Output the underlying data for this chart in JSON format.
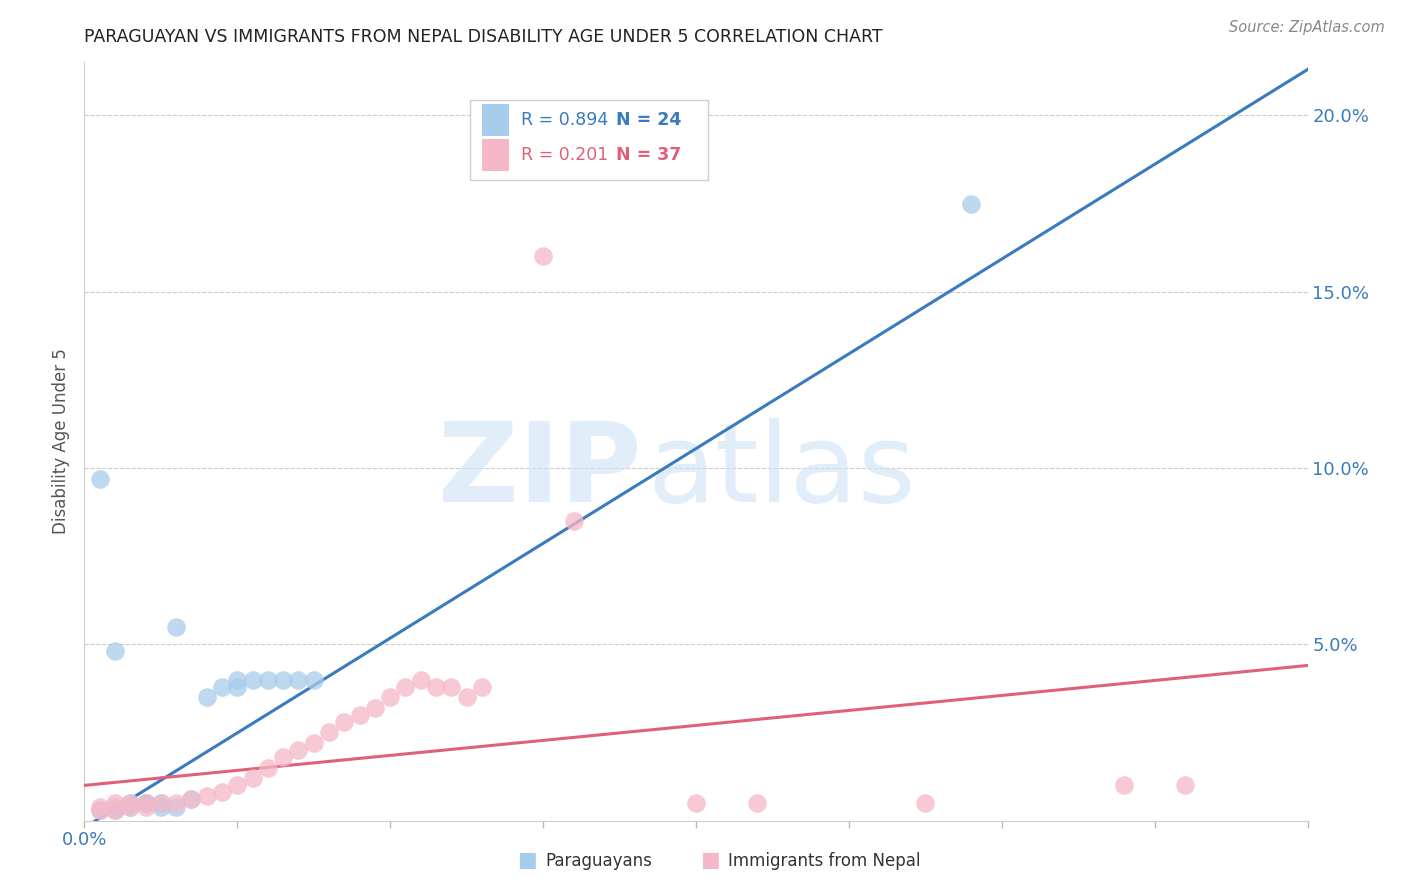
{
  "title": "PARAGUAYAN VS IMMIGRANTS FROM NEPAL DISABILITY AGE UNDER 5 CORRELATION CHART",
  "source": "Source: ZipAtlas.com",
  "ylabel": "Disability Age Under 5",
  "right_yticks": [
    "5.0%",
    "10.0%",
    "15.0%",
    "20.0%"
  ],
  "right_ytick_vals": [
    0.05,
    0.1,
    0.15,
    0.2
  ],
  "xlim": [
    0,
    0.08
  ],
  "ylim": [
    0,
    0.215
  ],
  "legend_r1": "0.894",
  "legend_n1": "24",
  "legend_r2": "0.201",
  "legend_n2": "37",
  "blue_color": "#a8ccec",
  "blue_line_color": "#3a7abf",
  "pink_color": "#f5b8c8",
  "pink_line_color": "#e0607a",
  "paraguayans_x": [
    0.001,
    0.002,
    0.002,
    0.003,
    0.003,
    0.004,
    0.004,
    0.005,
    0.005,
    0.006,
    0.007,
    0.008,
    0.009,
    0.01,
    0.01,
    0.011,
    0.012,
    0.013,
    0.014,
    0.015,
    0.002,
    0.006,
    0.001,
    0.058
  ],
  "paraguayans_y": [
    0.003,
    0.003,
    0.004,
    0.004,
    0.005,
    0.005,
    0.005,
    0.005,
    0.004,
    0.004,
    0.006,
    0.035,
    0.038,
    0.04,
    0.038,
    0.04,
    0.04,
    0.04,
    0.04,
    0.04,
    0.048,
    0.055,
    0.097,
    0.175
  ],
  "nepal_x": [
    0.001,
    0.001,
    0.002,
    0.002,
    0.003,
    0.003,
    0.004,
    0.004,
    0.005,
    0.006,
    0.007,
    0.008,
    0.009,
    0.01,
    0.011,
    0.012,
    0.013,
    0.014,
    0.015,
    0.016,
    0.017,
    0.018,
    0.019,
    0.02,
    0.021,
    0.022,
    0.023,
    0.024,
    0.025,
    0.026,
    0.03,
    0.032,
    0.04,
    0.044,
    0.055,
    0.068,
    0.072
  ],
  "nepal_y": [
    0.003,
    0.004,
    0.003,
    0.005,
    0.004,
    0.005,
    0.004,
    0.005,
    0.005,
    0.005,
    0.006,
    0.007,
    0.008,
    0.01,
    0.012,
    0.015,
    0.018,
    0.02,
    0.022,
    0.025,
    0.028,
    0.03,
    0.032,
    0.035,
    0.038,
    0.04,
    0.038,
    0.038,
    0.035,
    0.038,
    0.16,
    0.085,
    0.005,
    0.005,
    0.005,
    0.01,
    0.01
  ],
  "blue_trendline_x": [
    0.0,
    0.08
  ],
  "blue_trendline_y": [
    -0.002,
    0.213
  ],
  "pink_trendline_x": [
    0.0,
    0.08
  ],
  "pink_trendline_y": [
    0.01,
    0.044
  ]
}
